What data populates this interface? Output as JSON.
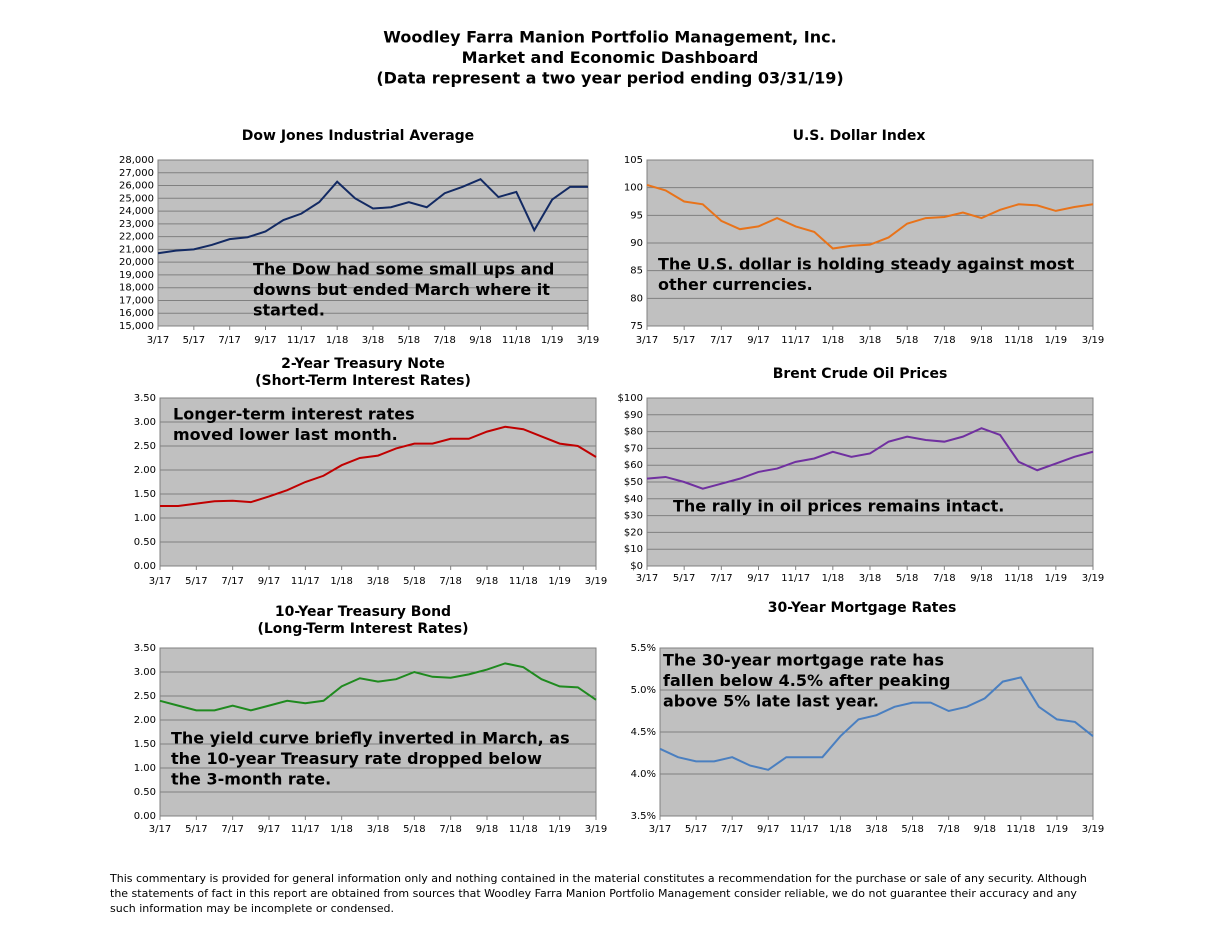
{
  "header": {
    "lines": [
      "Woodley Farra Manion Portfolio Management, Inc.",
      "Market and Economic Dashboard",
      "(Data represent a two year period ending 03/31/19)"
    ]
  },
  "footer": {
    "lines": [
      "This commentary is provided for general information only and nothing contained in the material constitutes a recommendation for the purchase or sale of any security. Although",
      "the statements of fact in this report are obtained from sources that Woodley Farra Manion Portfolio Management consider reliable, we do not guarantee their accuracy and any",
      "such information may be incomplete or condensed."
    ]
  },
  "chart_data": [
    {
      "type": "line",
      "title": "Dow Jones Industrial Average",
      "annotation": [
        "The Dow had some small ups and",
        "downs but ended March where it",
        "started."
      ],
      "color": "#132a63",
      "grid": true,
      "x": [
        0,
        1,
        2,
        3,
        4,
        5,
        6,
        7,
        8,
        9,
        10,
        11,
        12,
        13,
        14,
        15,
        16,
        17,
        18,
        19,
        20,
        21,
        22,
        23,
        24
      ],
      "values": [
        20700,
        20900,
        21000,
        21350,
        21800,
        21950,
        22400,
        23300,
        23800,
        24700,
        26300,
        25000,
        24200,
        24300,
        24700,
        24300,
        25400,
        25900,
        26500,
        25100,
        25500,
        22500,
        24900,
        25900,
        25900
      ],
      "xlim": [
        0,
        24
      ],
      "xticks": [
        {
          "value": 0,
          "label": "3/17"
        },
        {
          "value": 2,
          "label": "5/17"
        },
        {
          "value": 4,
          "label": "7/17"
        },
        {
          "value": 6,
          "label": "9/17"
        },
        {
          "value": 8,
          "label": "11/17"
        },
        {
          "value": 10,
          "label": "1/18"
        },
        {
          "value": 12,
          "label": "3/18"
        },
        {
          "value": 14,
          "label": "5/18"
        },
        {
          "value": 16,
          "label": "7/18"
        },
        {
          "value": 18,
          "label": "9/18"
        },
        {
          "value": 20,
          "label": "11/18"
        },
        {
          "value": 22,
          "label": "1/19"
        },
        {
          "value": 24,
          "label": "3/19"
        }
      ],
      "ylim": [
        15000,
        28000
      ],
      "yticks": [
        {
          "value": 15000,
          "label": "15,000"
        },
        {
          "value": 16000,
          "label": "16,000"
        },
        {
          "value": 17000,
          "label": "17,000"
        },
        {
          "value": 18000,
          "label": "18,000"
        },
        {
          "value": 19000,
          "label": "19,000"
        },
        {
          "value": 20000,
          "label": "20,000"
        },
        {
          "value": 21000,
          "label": "21,000"
        },
        {
          "value": 22000,
          "label": "22,000"
        },
        {
          "value": 23000,
          "label": "23,000"
        },
        {
          "value": 24000,
          "label": "24,000"
        },
        {
          "value": 25000,
          "label": "25,000"
        },
        {
          "value": 26000,
          "label": "26,000"
        },
        {
          "value": 27000,
          "label": "27,000"
        },
        {
          "value": 28000,
          "label": "28,000"
        }
      ]
    },
    {
      "type": "line",
      "title": "U.S. Dollar Index",
      "annotation": [
        "The U.S. dollar is holding steady against most",
        "other currencies."
      ],
      "color": "#e8731a",
      "grid": true,
      "x": [
        0,
        1,
        2,
        3,
        4,
        5,
        6,
        7,
        8,
        9,
        10,
        11,
        12,
        13,
        14,
        15,
        16,
        17,
        18,
        19,
        20,
        21,
        22,
        23,
        24
      ],
      "values": [
        100.5,
        99.5,
        97.5,
        97,
        94,
        92.5,
        93,
        94.5,
        93,
        92,
        89,
        89.5,
        89.7,
        91,
        93.5,
        94.5,
        94.7,
        95.5,
        94.5,
        96,
        97,
        96.8,
        95.8,
        96.5,
        97
      ],
      "xlim": [
        0,
        24
      ],
      "xticks": [
        {
          "value": 0,
          "label": "3/17"
        },
        {
          "value": 2,
          "label": "5/17"
        },
        {
          "value": 4,
          "label": "7/17"
        },
        {
          "value": 6,
          "label": "9/17"
        },
        {
          "value": 8,
          "label": "11/17"
        },
        {
          "value": 10,
          "label": "1/18"
        },
        {
          "value": 12,
          "label": "3/18"
        },
        {
          "value": 14,
          "label": "5/18"
        },
        {
          "value": 16,
          "label": "7/18"
        },
        {
          "value": 18,
          "label": "9/18"
        },
        {
          "value": 20,
          "label": "11/18"
        },
        {
          "value": 22,
          "label": "1/19"
        },
        {
          "value": 24,
          "label": "3/19"
        }
      ],
      "ylim": [
        75,
        105
      ],
      "yticks": [
        75,
        80,
        85,
        90,
        95,
        100,
        105
      ]
    },
    {
      "type": "line",
      "title": "2-Year Treasury Note",
      "subtitle": "(Short-Term Interest Rates)",
      "annotation": [
        "Longer-term interest rates",
        "moved lower last month."
      ],
      "color": "#c00000",
      "grid": true,
      "x": [
        0,
        1,
        2,
        3,
        4,
        5,
        6,
        7,
        8,
        9,
        10,
        11,
        12,
        13,
        14,
        15,
        16,
        17,
        18,
        19,
        20,
        21,
        22,
        23,
        24
      ],
      "values": [
        1.25,
        1.25,
        1.3,
        1.35,
        1.36,
        1.33,
        1.45,
        1.58,
        1.75,
        1.88,
        2.1,
        2.25,
        2.3,
        2.45,
        2.55,
        2.55,
        2.65,
        2.65,
        2.8,
        2.9,
        2.85,
        2.7,
        2.55,
        2.5,
        2.27
      ],
      "xlim": [
        0,
        24
      ],
      "xticks": [
        {
          "value": 0,
          "label": "3/17"
        },
        {
          "value": 2,
          "label": "5/17"
        },
        {
          "value": 4,
          "label": "7/17"
        },
        {
          "value": 6,
          "label": "9/17"
        },
        {
          "value": 8,
          "label": "11/17"
        },
        {
          "value": 10,
          "label": "1/18"
        },
        {
          "value": 12,
          "label": "3/18"
        },
        {
          "value": 14,
          "label": "5/18"
        },
        {
          "value": 16,
          "label": "7/18"
        },
        {
          "value": 18,
          "label": "9/18"
        },
        {
          "value": 20,
          "label": "11/18"
        },
        {
          "value": 22,
          "label": "1/19"
        },
        {
          "value": 24,
          "label": "3/19"
        }
      ],
      "ylim": [
        0,
        3.5
      ],
      "yticks": [
        {
          "value": 0,
          "label": "0.00"
        },
        {
          "value": 0.5,
          "label": "0.50"
        },
        {
          "value": 1,
          "label": "1.00"
        },
        {
          "value": 1.5,
          "label": "1.50"
        },
        {
          "value": 2,
          "label": "2.00"
        },
        {
          "value": 2.5,
          "label": "2.50"
        },
        {
          "value": 3,
          "label": "3.00"
        },
        {
          "value": 3.5,
          "label": "3.50"
        }
      ]
    },
    {
      "type": "line",
      "title": "Brent Crude Oil Prices",
      "annotation": [
        "The rally in oil prices remains intact."
      ],
      "color": "#7030a0",
      "grid": true,
      "x": [
        0,
        1,
        2,
        3,
        4,
        5,
        6,
        7,
        8,
        9,
        10,
        11,
        12,
        13,
        14,
        15,
        16,
        17,
        18,
        19,
        20,
        21,
        22,
        23,
        24
      ],
      "values": [
        52,
        53,
        50,
        46,
        49,
        52,
        56,
        58,
        62,
        64,
        68,
        65,
        67,
        74,
        77,
        75,
        74,
        77,
        82,
        78,
        62,
        57,
        61,
        65,
        68
      ],
      "xlim": [
        0,
        24
      ],
      "xticks": [
        {
          "value": 0,
          "label": "3/17"
        },
        {
          "value": 2,
          "label": "5/17"
        },
        {
          "value": 4,
          "label": "7/17"
        },
        {
          "value": 6,
          "label": "9/17"
        },
        {
          "value": 8,
          "label": "11/17"
        },
        {
          "value": 10,
          "label": "1/18"
        },
        {
          "value": 12,
          "label": "3/18"
        },
        {
          "value": 14,
          "label": "5/18"
        },
        {
          "value": 16,
          "label": "7/18"
        },
        {
          "value": 18,
          "label": "9/18"
        },
        {
          "value": 20,
          "label": "11/18"
        },
        {
          "value": 22,
          "label": "1/19"
        },
        {
          "value": 24,
          "label": "3/19"
        }
      ],
      "ylim": [
        0,
        100
      ],
      "yticks": [
        {
          "value": 0,
          "label": "$0"
        },
        {
          "value": 10,
          "label": "$10"
        },
        {
          "value": 20,
          "label": "$20"
        },
        {
          "value": 30,
          "label": "$30"
        },
        {
          "value": 40,
          "label": "$40"
        },
        {
          "value": 50,
          "label": "$50"
        },
        {
          "value": 60,
          "label": "$60"
        },
        {
          "value": 70,
          "label": "$70"
        },
        {
          "value": 80,
          "label": "$80"
        },
        {
          "value": 90,
          "label": "$90"
        },
        {
          "value": 100,
          "label": "$100"
        }
      ]
    },
    {
      "type": "line",
      "title": "10-Year Treasury Bond",
      "subtitle": "(Long-Term Interest Rates)",
      "annotation": [
        "The yield curve briefly inverted in March, as",
        "the 10-year Treasury rate dropped below",
        "the 3-month rate."
      ],
      "color": "#1f8a1f",
      "grid": true,
      "x": [
        0,
        1,
        2,
        3,
        4,
        5,
        6,
        7,
        8,
        9,
        10,
        11,
        12,
        13,
        14,
        15,
        16,
        17,
        18,
        19,
        20,
        21,
        22,
        23,
        24
      ],
      "values": [
        2.4,
        2.3,
        2.2,
        2.2,
        2.3,
        2.2,
        2.3,
        2.4,
        2.35,
        2.4,
        2.7,
        2.87,
        2.8,
        2.85,
        3.0,
        2.9,
        2.88,
        2.95,
        3.05,
        3.18,
        3.1,
        2.85,
        2.7,
        2.68,
        2.42
      ],
      "xlim": [
        0,
        24
      ],
      "xticks": [
        {
          "value": 0,
          "label": "3/17"
        },
        {
          "value": 2,
          "label": "5/17"
        },
        {
          "value": 4,
          "label": "7/17"
        },
        {
          "value": 6,
          "label": "9/17"
        },
        {
          "value": 8,
          "label": "11/17"
        },
        {
          "value": 10,
          "label": "1/18"
        },
        {
          "value": 12,
          "label": "3/18"
        },
        {
          "value": 14,
          "label": "5/18"
        },
        {
          "value": 16,
          "label": "7/18"
        },
        {
          "value": 18,
          "label": "9/18"
        },
        {
          "value": 20,
          "label": "11/18"
        },
        {
          "value": 22,
          "label": "1/19"
        },
        {
          "value": 24,
          "label": "3/19"
        }
      ],
      "ylim": [
        0,
        3.5
      ],
      "yticks": [
        {
          "value": 0,
          "label": "0.00"
        },
        {
          "value": 0.5,
          "label": "0.50"
        },
        {
          "value": 1,
          "label": "1.00"
        },
        {
          "value": 1.5,
          "label": "1.50"
        },
        {
          "value": 2,
          "label": "2.00"
        },
        {
          "value": 2.5,
          "label": "2.50"
        },
        {
          "value": 3,
          "label": "3.00"
        },
        {
          "value": 3.5,
          "label": "3.50"
        }
      ]
    },
    {
      "type": "line",
      "title": "30-Year Mortgage Rates",
      "annotation": [
        "The 30-year mortgage rate has",
        "fallen below 4.5% after peaking",
        "above 5% late last year."
      ],
      "color": "#4a7fc0",
      "grid": true,
      "x": [
        0,
        1,
        2,
        3,
        4,
        5,
        6,
        7,
        8,
        9,
        10,
        11,
        12,
        13,
        14,
        15,
        16,
        17,
        18,
        19,
        20,
        21,
        22,
        23,
        24
      ],
      "values": [
        4.3,
        4.2,
        4.15,
        4.15,
        4.2,
        4.1,
        4.05,
        4.2,
        4.2,
        4.2,
        4.45,
        4.65,
        4.7,
        4.8,
        4.85,
        4.85,
        4.75,
        4.8,
        4.9,
        5.1,
        5.15,
        4.8,
        4.65,
        4.62,
        4.45
      ],
      "xlim": [
        0,
        24
      ],
      "xticks": [
        {
          "value": 0,
          "label": "3/17"
        },
        {
          "value": 2,
          "label": "5/17"
        },
        {
          "value": 4,
          "label": "7/17"
        },
        {
          "value": 6,
          "label": "9/17"
        },
        {
          "value": 8,
          "label": "11/17"
        },
        {
          "value": 10,
          "label": "1/18"
        },
        {
          "value": 12,
          "label": "3/18"
        },
        {
          "value": 14,
          "label": "5/18"
        },
        {
          "value": 16,
          "label": "7/18"
        },
        {
          "value": 18,
          "label": "9/18"
        },
        {
          "value": 20,
          "label": "11/18"
        },
        {
          "value": 22,
          "label": "1/19"
        },
        {
          "value": 24,
          "label": "3/19"
        }
      ],
      "ylim": [
        3.5,
        5.5
      ],
      "yticks": [
        {
          "value": 3.5,
          "label": "3.5%"
        },
        {
          "value": 4,
          "label": "4.0%"
        },
        {
          "value": 4.5,
          "label": "4.5%"
        },
        {
          "value": 5,
          "label": "5.0%"
        },
        {
          "value": 5.5,
          "label": "5.5%"
        }
      ]
    }
  ]
}
